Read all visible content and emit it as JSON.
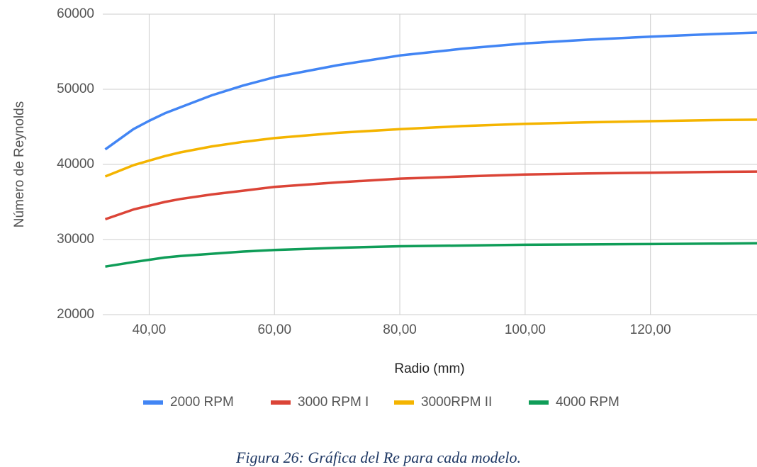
{
  "chart_data": {
    "type": "line",
    "x_label": "Radio (mm)",
    "y_label": "Número de Reynolds",
    "caption": "Figura 26: Gráfica del Re para cada modelo.",
    "x": [
      33,
      37.5,
      40,
      42.5,
      45,
      50,
      55,
      60,
      70,
      80,
      90,
      100,
      110,
      120,
      130,
      137
    ],
    "series": [
      {
        "name": "2000 RPM",
        "color": "#4285f4",
        "values": [
          42000,
          44700,
          45800,
          46800,
          47600,
          49200,
          50500,
          51600,
          53200,
          54500,
          55400,
          56100,
          56600,
          57000,
          57350,
          57550
        ]
      },
      {
        "name": "3000 RPM I",
        "color": "#db4437",
        "values": [
          32700,
          34000,
          34500,
          35000,
          35400,
          36000,
          36500,
          37000,
          37600,
          38100,
          38400,
          38650,
          38800,
          38900,
          39000,
          39050
        ]
      },
      {
        "name": "3000RPM II",
        "color": "#f4b400",
        "values": [
          38400,
          39900,
          40500,
          41100,
          41600,
          42400,
          43000,
          43500,
          44200,
          44700,
          45100,
          45400,
          45600,
          45750,
          45900,
          45950
        ]
      },
      {
        "name": "4000 RPM",
        "color": "#0f9d58",
        "values": [
          26400,
          27000,
          27300,
          27600,
          27800,
          28100,
          28400,
          28600,
          28900,
          29100,
          29200,
          29300,
          29350,
          29400,
          29450,
          29500
        ]
      }
    ],
    "xlim": [
      32.6,
      137
    ],
    "xticks": [
      {
        "value": 40,
        "label": "40,00"
      },
      {
        "value": 60,
        "label": "60,00"
      },
      {
        "value": 80,
        "label": "80,00"
      },
      {
        "value": 100,
        "label": "100,00"
      },
      {
        "value": 120,
        "label": "120,00"
      }
    ],
    "ylim": [
      20000,
      60000
    ],
    "yticks": [
      20000,
      30000,
      40000,
      50000,
      60000
    ],
    "grid": true,
    "legend": "bottom"
  }
}
